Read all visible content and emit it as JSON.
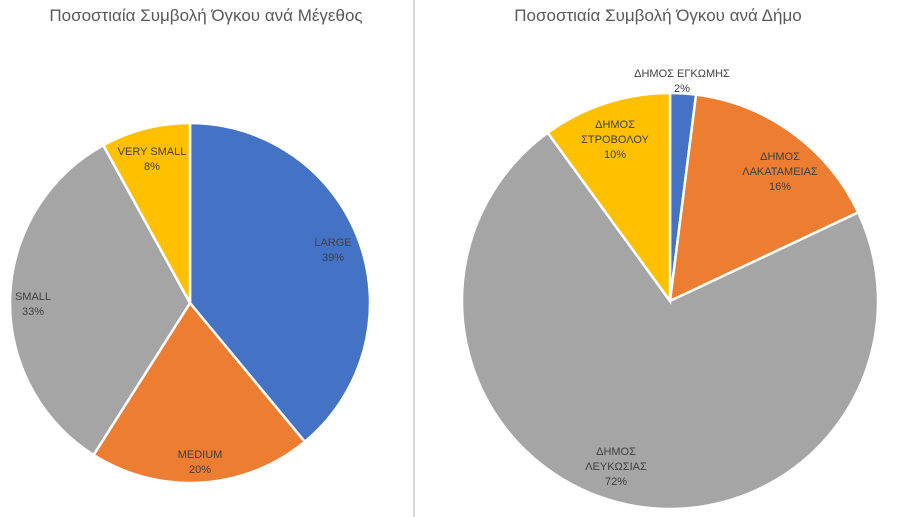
{
  "chart_data": [
    {
      "type": "pie",
      "title": "Ποσοστιαία Συμβολή Όγκου ανά Μέγεθος",
      "slices": [
        {
          "name": "LARGE",
          "value": 39,
          "label": "39%",
          "color": "#4472C4"
        },
        {
          "name": "MEDIUM",
          "value": 20,
          "label": "20%",
          "color": "#ED7D31"
        },
        {
          "name": "SMALL",
          "value": 33,
          "label": "33%",
          "color": "#A5A5A5"
        },
        {
          "name": "VERY SMALL",
          "value": 8,
          "label": "8%",
          "color": "#FFC000"
        }
      ]
    },
    {
      "type": "pie",
      "title": "Ποσοστιαία Συμβολή Όγκου ανά Δήμο",
      "slices": [
        {
          "name": "ΔΗΜΟΣ ΕΓΚΩΜΗΣ",
          "value": 2,
          "label": "2%",
          "color": "#4472C4"
        },
        {
          "name": "ΔΗΜΟΣ ΛΑΚΑΤΑΜΕΙΑΣ",
          "value": 16,
          "label": "16%",
          "color": "#ED7D31"
        },
        {
          "name": "ΔΗΜΟΣ ΛΕΥΚΩΣΙΑΣ",
          "value": 72,
          "label": "72%",
          "color": "#A5A5A5"
        },
        {
          "name": "ΔΗΜΟΣ ΣΤΡΟΒΟΛΟΥ",
          "value": 10,
          "label": "10%",
          "color": "#FFC000"
        }
      ]
    }
  ]
}
